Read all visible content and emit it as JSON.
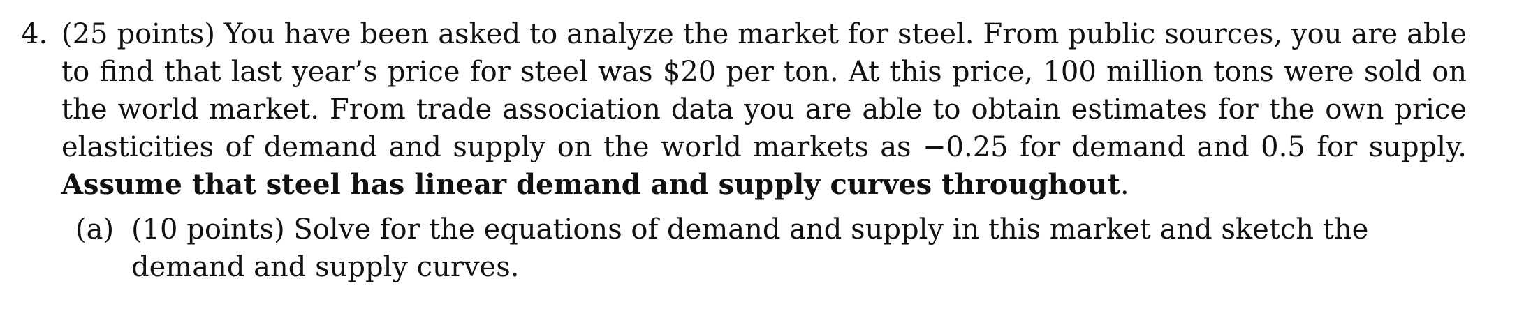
{
  "problem": {
    "number": "4.",
    "points": "(25 points)",
    "text_1": " You have been asked to analyze the market for steel. From public sources, you are able to find that last year’s price for steel was $20 per ton. At this price, 100 million tons were sold on the world market. From trade association data you are able to obtain estimates for the own price elasticities of demand and supply on the world markets as −0.25 for demand and 0.5 for supply. ",
    "bold_text": "Assume that steel has linear demand and supply curves throughout",
    "text_end": "."
  },
  "part_a": {
    "label": "(a)",
    "points": "(10 points)",
    "text": " Solve for the equations of demand and supply in this market and sketch the demand and supply curves."
  }
}
